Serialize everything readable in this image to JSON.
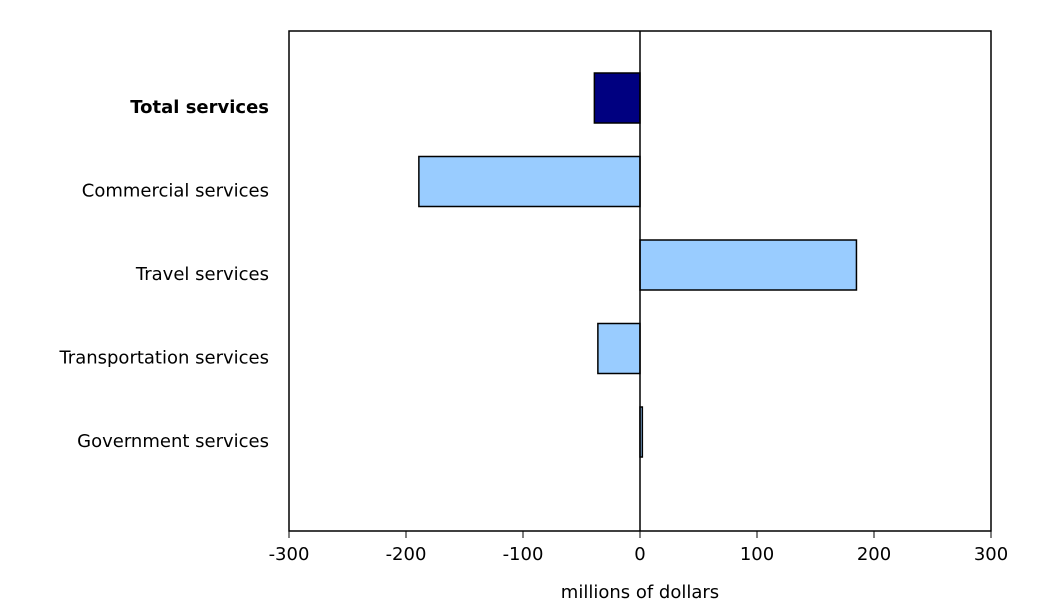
{
  "chart_data": {
    "type": "bar",
    "orientation": "horizontal",
    "categories": [
      "Total services",
      "Commercial services",
      "Travel services",
      "Transportation services",
      "Government services"
    ],
    "values": [
      -39,
      -189,
      185,
      -36,
      2
    ],
    "xlabel": "millions of dollars",
    "xlim": [
      -300,
      300
    ],
    "xticks": [
      -300,
      -200,
      -100,
      0,
      100,
      200,
      300
    ],
    "xtick_labels": [
      "-300",
      "-200",
      "-100",
      "0",
      "100",
      "200",
      "300"
    ],
    "grid": false,
    "colors": {
      "total": "#000080",
      "component": "#99ccff",
      "outline": "#000000"
    }
  }
}
